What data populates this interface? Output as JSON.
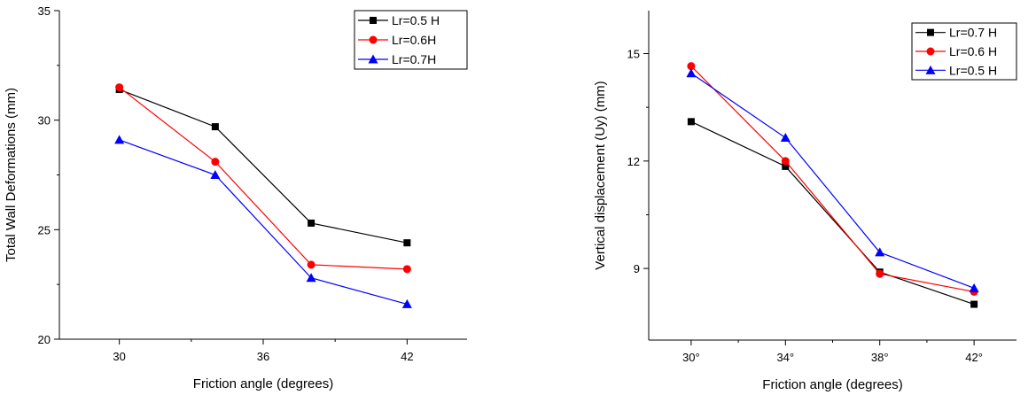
{
  "chart_data": [
    {
      "type": "line",
      "categories": [
        "30",
        "34",
        "38",
        "42"
      ],
      "x": [
        30,
        34,
        38,
        42
      ],
      "xlabel": "Friction angle (degrees)",
      "ylabel": "Total Wall Deformations (mm)",
      "xticks": [
        "30",
        "36",
        "42"
      ],
      "xtick_values": [
        30,
        36,
        42
      ],
      "yticks": [
        "20",
        "25",
        "30",
        "35"
      ],
      "ytick_values": [
        20,
        25,
        30,
        35
      ],
      "xlim": [
        27.5,
        44.5
      ],
      "ylim": [
        20,
        35
      ],
      "legend_position": "top-right",
      "grid": false,
      "series": [
        {
          "name": "Lr=0.5 H",
          "values": [
            31.4,
            29.7,
            25.3,
            24.4
          ],
          "color": "#000000",
          "marker": "square"
        },
        {
          "name": "Lr=0.6H",
          "values": [
            31.5,
            28.1,
            23.4,
            23.2
          ],
          "color": "#ff0000",
          "marker": "circle"
        },
        {
          "name": "Lr=0.7H",
          "values": [
            29.1,
            27.5,
            22.8,
            21.6
          ],
          "color": "#0000ff",
          "marker": "triangle"
        }
      ]
    },
    {
      "type": "line",
      "categories": [
        "30°",
        "34°",
        "38°",
        "42°"
      ],
      "x": [
        30,
        34,
        38,
        42
      ],
      "xlabel": "Friction angle (degrees)",
      "ylabel": "Vertical displacement (Uy) (mm)",
      "xticks": [
        "30°",
        "34°",
        "38°",
        "42°"
      ],
      "xtick_values": [
        30,
        34,
        38,
        42
      ],
      "yticks": [
        "9",
        "12",
        "15"
      ],
      "ytick_values": [
        9,
        12,
        15
      ],
      "xlim": [
        28.2,
        43.8
      ],
      "ylim": [
        7,
        16.2
      ],
      "legend_position": "top-right",
      "grid": false,
      "series": [
        {
          "name": "Lr=0.7 H",
          "values": [
            13.1,
            11.85,
            8.9,
            8.0
          ],
          "color": "#000000",
          "marker": "square"
        },
        {
          "name": "Lr=0.6 H",
          "values": [
            14.65,
            12.0,
            8.85,
            8.35
          ],
          "color": "#ff0000",
          "marker": "circle"
        },
        {
          "name": "Lr=0.5 H",
          "values": [
            14.45,
            12.65,
            9.45,
            8.45
          ],
          "color": "#0000ff",
          "marker": "triangle"
        }
      ]
    }
  ]
}
